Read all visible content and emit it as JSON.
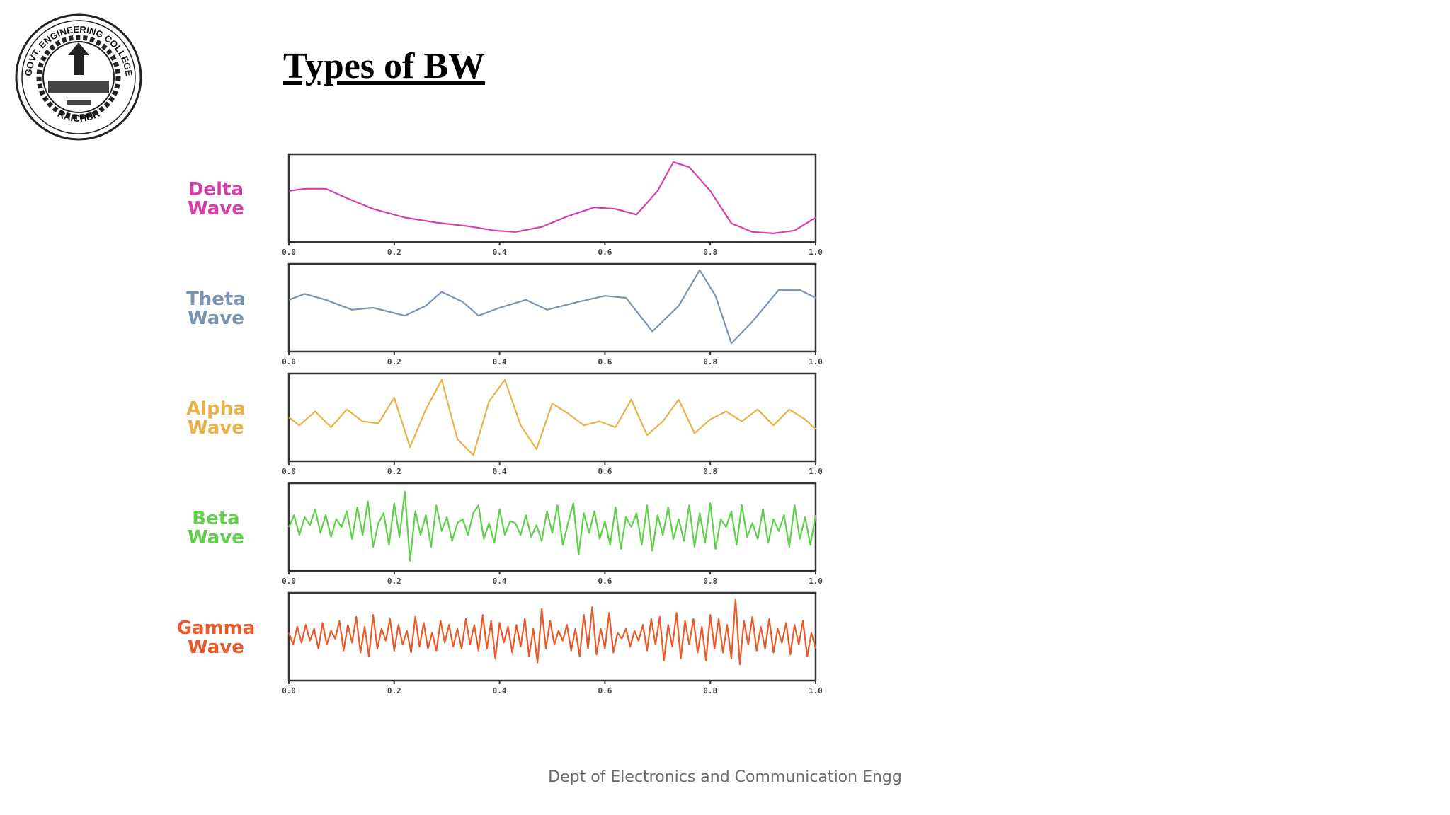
{
  "slide": {
    "title": "Types of BW",
    "footer": "Dept of Electronics and Communication Engg"
  },
  "logo": {
    "ring_text_top": "GOVT. ENGINEERING COLLEGE",
    "ring_text_bottom": "RAICHUR"
  },
  "chart_data": [
    {
      "type": "line",
      "series_name_lines": [
        "Delta",
        "Wave"
      ],
      "color": "#d63fa8",
      "xlim": [
        0.0,
        1.0
      ],
      "ticks": [
        "0.0",
        "0.2",
        "0.4",
        "0.6",
        "0.8",
        "1.0"
      ],
      "x": [
        0.0,
        0.03,
        0.07,
        0.11,
        0.16,
        0.22,
        0.28,
        0.34,
        0.39,
        0.43,
        0.48,
        0.53,
        0.58,
        0.62,
        0.66,
        0.7,
        0.73,
        0.76,
        0.8,
        0.84,
        0.88,
        0.92,
        0.96,
        1.0
      ],
      "y": [
        0.55,
        0.58,
        0.58,
        0.45,
        0.3,
        0.18,
        0.11,
        0.06,
        0.0,
        -0.02,
        0.05,
        0.2,
        0.32,
        0.3,
        0.22,
        0.55,
        0.95,
        0.88,
        0.55,
        0.1,
        -0.02,
        -0.04,
        0.0,
        0.18
      ],
      "ylim": [
        -0.1,
        1.0
      ]
    },
    {
      "type": "line",
      "series_name_lines": [
        "Theta",
        "Wave"
      ],
      "color": "#7a93b0",
      "xlim": [
        0.0,
        1.0
      ],
      "ticks": [
        "0.0",
        "0.2",
        "0.4",
        "0.6",
        "0.8",
        "1.0"
      ],
      "x": [
        0.0,
        0.03,
        0.07,
        0.12,
        0.16,
        0.22,
        0.26,
        0.29,
        0.33,
        0.36,
        0.4,
        0.45,
        0.49,
        0.55,
        0.6,
        0.64,
        0.69,
        0.74,
        0.78,
        0.81,
        0.84,
        0.88,
        0.93,
        0.97,
        1.0
      ],
      "y": [
        0.2,
        0.35,
        0.2,
        -0.05,
        0.0,
        -0.2,
        0.05,
        0.4,
        0.15,
        -0.2,
        0.0,
        0.2,
        -0.05,
        0.15,
        0.3,
        0.25,
        -0.6,
        0.05,
        0.95,
        0.3,
        -0.9,
        -0.35,
        0.45,
        0.45,
        0.25
      ],
      "ylim": [
        -1.0,
        1.0
      ]
    },
    {
      "type": "line",
      "series_name_lines": [
        "Alpha",
        "Wave"
      ],
      "color": "#e8b24a",
      "xlim": [
        0.0,
        1.0
      ],
      "ticks": [
        "0.0",
        "0.2",
        "0.4",
        "0.6",
        "0.8",
        "1.0"
      ],
      "x": [
        0.0,
        0.02,
        0.05,
        0.08,
        0.11,
        0.14,
        0.17,
        0.2,
        0.23,
        0.26,
        0.29,
        0.32,
        0.35,
        0.38,
        0.41,
        0.44,
        0.47,
        0.5,
        0.53,
        0.56,
        0.59,
        0.62,
        0.65,
        0.68,
        0.71,
        0.74,
        0.77,
        0.8,
        0.83,
        0.86,
        0.89,
        0.92,
        0.95,
        0.98,
        1.0
      ],
      "y": [
        0.0,
        -0.2,
        0.15,
        -0.25,
        0.2,
        -0.1,
        -0.15,
        0.5,
        -0.75,
        0.2,
        0.95,
        -0.55,
        -0.95,
        0.4,
        0.95,
        -0.2,
        -0.8,
        0.35,
        0.1,
        -0.2,
        -0.1,
        -0.25,
        0.45,
        -0.45,
        -0.1,
        0.45,
        -0.4,
        -0.05,
        0.15,
        -0.1,
        0.2,
        -0.2,
        0.2,
        -0.05,
        -0.3
      ],
      "ylim": [
        -1.0,
        1.0
      ]
    },
    {
      "type": "line",
      "series_name_lines": [
        "Beta",
        "Wave"
      ],
      "color": "#5fcf4c",
      "xlim": [
        0.0,
        1.0
      ],
      "ticks": [
        "0.0",
        "0.2",
        "0.4",
        "0.6",
        "0.8",
        "1.0"
      ],
      "x": [
        0.0,
        0.01,
        0.02,
        0.03,
        0.04,
        0.05,
        0.06,
        0.07,
        0.08,
        0.09,
        0.1,
        0.11,
        0.12,
        0.13,
        0.14,
        0.15,
        0.16,
        0.17,
        0.18,
        0.19,
        0.2,
        0.21,
        0.22,
        0.23,
        0.24,
        0.25,
        0.26,
        0.27,
        0.28,
        0.29,
        0.3,
        0.31,
        0.32,
        0.33,
        0.34,
        0.35,
        0.36,
        0.37,
        0.38,
        0.39,
        0.4,
        0.41,
        0.42,
        0.43,
        0.44,
        0.45,
        0.46,
        0.47,
        0.48,
        0.49,
        0.5,
        0.51,
        0.52,
        0.53,
        0.54,
        0.55,
        0.56,
        0.57,
        0.58,
        0.59,
        0.6,
        0.61,
        0.62,
        0.63,
        0.64,
        0.65,
        0.66,
        0.67,
        0.68,
        0.69,
        0.7,
        0.71,
        0.72,
        0.73,
        0.74,
        0.75,
        0.76,
        0.77,
        0.78,
        0.79,
        0.8,
        0.81,
        0.82,
        0.83,
        0.84,
        0.85,
        0.86,
        0.87,
        0.88,
        0.89,
        0.9,
        0.91,
        0.92,
        0.93,
        0.94,
        0.95,
        0.96,
        0.97,
        0.98,
        0.99,
        1.0
      ],
      "y": [
        0.0,
        0.3,
        -0.2,
        0.25,
        0.05,
        0.45,
        -0.15,
        0.3,
        -0.25,
        0.2,
        0.0,
        0.4,
        -0.3,
        0.5,
        -0.2,
        0.65,
        -0.5,
        0.1,
        0.35,
        -0.45,
        0.6,
        -0.25,
        0.9,
        -0.85,
        0.4,
        -0.2,
        0.3,
        -0.5,
        0.55,
        -0.1,
        0.25,
        -0.35,
        0.1,
        0.2,
        -0.2,
        0.35,
        0.55,
        -0.3,
        0.1,
        -0.4,
        0.45,
        -0.2,
        0.15,
        0.1,
        -0.2,
        0.3,
        -0.25,
        0.05,
        -0.35,
        0.4,
        -0.15,
        0.55,
        -0.45,
        0.1,
        0.6,
        -0.7,
        0.35,
        -0.15,
        0.4,
        -0.3,
        0.15,
        -0.45,
        0.5,
        -0.55,
        0.25,
        0.0,
        0.35,
        -0.45,
        0.55,
        -0.6,
        0.3,
        -0.2,
        0.5,
        -0.3,
        0.2,
        -0.35,
        0.55,
        -0.5,
        0.35,
        -0.4,
        0.6,
        -0.55,
        0.2,
        0.0,
        0.4,
        -0.45,
        0.55,
        -0.25,
        0.1,
        -0.3,
        0.45,
        -0.4,
        0.2,
        -0.1,
        0.3,
        -0.5,
        0.55,
        -0.3,
        0.25,
        -0.45,
        0.3
      ],
      "ylim": [
        -1.0,
        1.0
      ]
    },
    {
      "type": "line",
      "series_name_lines": [
        "Gamma",
        "Wave"
      ],
      "color": "#e85a2a",
      "xlim": [
        0.0,
        1.0
      ],
      "ticks": [
        "0.0",
        "0.2",
        "0.4",
        "0.6",
        "0.8",
        "1.0"
      ],
      "x": [
        0.0,
        0.008,
        0.016,
        0.024,
        0.032,
        0.04,
        0.048,
        0.056,
        0.064,
        0.072,
        0.08,
        0.088,
        0.096,
        0.104,
        0.112,
        0.12,
        0.128,
        0.136,
        0.144,
        0.152,
        0.16,
        0.168,
        0.176,
        0.184,
        0.192,
        0.2,
        0.208,
        0.216,
        0.224,
        0.232,
        0.24,
        0.248,
        0.256,
        0.264,
        0.272,
        0.28,
        0.288,
        0.296,
        0.304,
        0.312,
        0.32,
        0.328,
        0.336,
        0.344,
        0.352,
        0.36,
        0.368,
        0.376,
        0.384,
        0.392,
        0.4,
        0.408,
        0.416,
        0.424,
        0.432,
        0.44,
        0.448,
        0.456,
        0.464,
        0.472,
        0.48,
        0.488,
        0.496,
        0.504,
        0.512,
        0.52,
        0.528,
        0.536,
        0.544,
        0.552,
        0.56,
        0.568,
        0.576,
        0.584,
        0.592,
        0.6,
        0.608,
        0.616,
        0.624,
        0.632,
        0.64,
        0.648,
        0.656,
        0.664,
        0.672,
        0.68,
        0.688,
        0.696,
        0.704,
        0.712,
        0.72,
        0.728,
        0.736,
        0.744,
        0.752,
        0.76,
        0.768,
        0.776,
        0.784,
        0.792,
        0.8,
        0.808,
        0.816,
        0.824,
        0.832,
        0.84,
        0.848,
        0.856,
        0.864,
        0.872,
        0.88,
        0.888,
        0.896,
        0.904,
        0.912,
        0.92,
        0.928,
        0.936,
        0.944,
        0.952,
        0.96,
        0.968,
        0.976,
        0.984,
        0.992,
        1.0
      ],
      "y": [
        0.1,
        -0.2,
        0.25,
        -0.15,
        0.3,
        -0.1,
        0.2,
        -0.3,
        0.35,
        -0.2,
        0.15,
        -0.05,
        0.4,
        -0.35,
        0.3,
        -0.15,
        0.5,
        -0.4,
        0.25,
        -0.5,
        0.55,
        -0.3,
        0.2,
        -0.1,
        0.45,
        -0.35,
        0.3,
        -0.2,
        0.15,
        -0.4,
        0.5,
        -0.25,
        0.35,
        -0.3,
        0.1,
        -0.35,
        0.4,
        -0.15,
        0.3,
        -0.25,
        0.2,
        -0.3,
        0.45,
        -0.2,
        0.3,
        -0.35,
        0.55,
        -0.3,
        0.4,
        -0.55,
        0.35,
        -0.15,
        0.25,
        -0.4,
        0.3,
        -0.25,
        0.45,
        -0.5,
        0.2,
        -0.65,
        0.7,
        -0.3,
        0.4,
        -0.2,
        0.15,
        -0.1,
        0.3,
        -0.35,
        0.2,
        -0.5,
        0.55,
        -0.3,
        0.75,
        -0.45,
        0.2,
        -0.3,
        0.6,
        -0.4,
        0.1,
        -0.05,
        0.2,
        -0.25,
        0.15,
        -0.1,
        0.3,
        -0.35,
        0.45,
        -0.2,
        0.5,
        -0.6,
        0.3,
        -0.25,
        0.6,
        -0.55,
        0.4,
        -0.2,
        0.45,
        -0.4,
        0.25,
        -0.6,
        0.55,
        -0.3,
        0.45,
        -0.4,
        0.3,
        -0.55,
        0.95,
        -0.7,
        0.4,
        -0.2,
        0.5,
        -0.35,
        0.25,
        -0.3,
        0.45,
        -0.4,
        0.2,
        -0.15,
        0.35,
        -0.45,
        0.3,
        -0.2,
        0.4,
        -0.5,
        0.1,
        -0.3
      ],
      "ylim": [
        -1.0,
        1.0
      ]
    }
  ]
}
